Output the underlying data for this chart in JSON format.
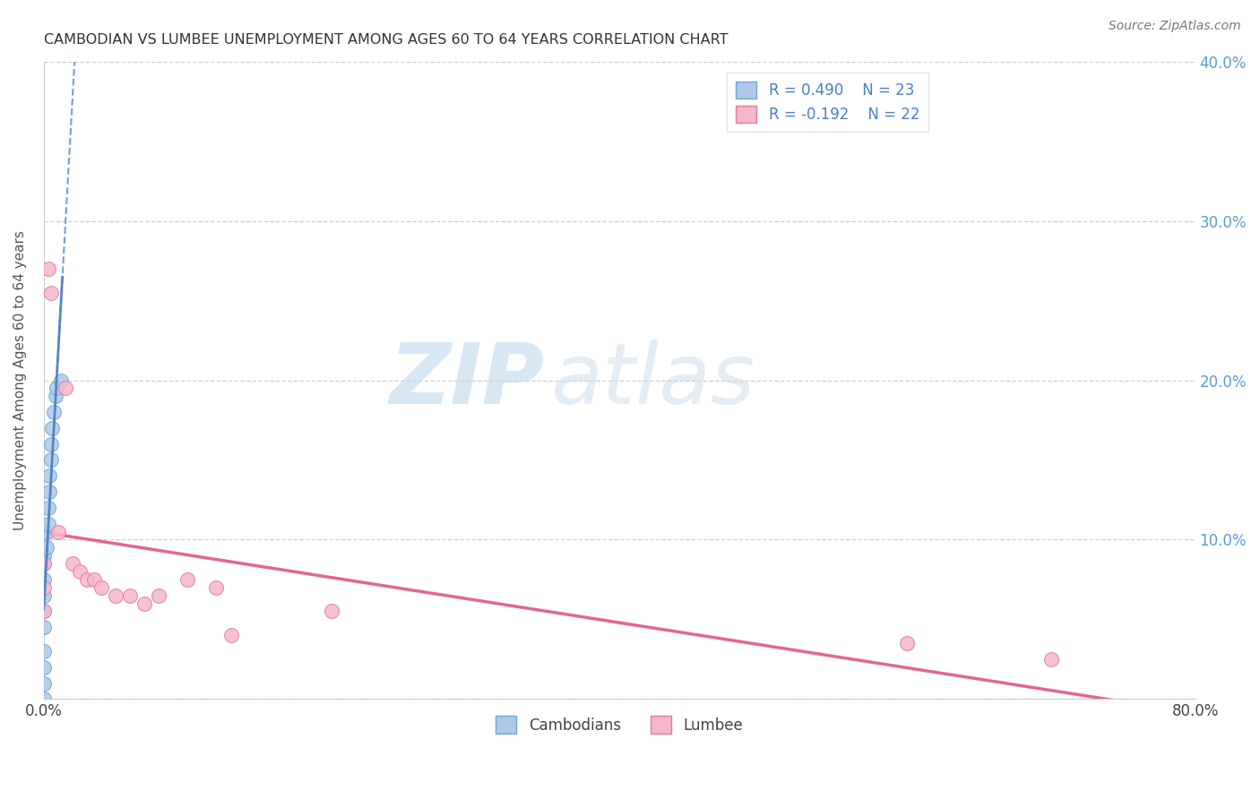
{
  "title": "CAMBODIAN VS LUMBEE UNEMPLOYMENT AMONG AGES 60 TO 64 YEARS CORRELATION CHART",
  "source": "Source: ZipAtlas.com",
  "ylabel": "Unemployment Among Ages 60 to 64 years",
  "xlim": [
    0,
    0.8
  ],
  "ylim": [
    0,
    0.4
  ],
  "cambodian_R": 0.49,
  "cambodian_N": 23,
  "lumbee_R": -0.192,
  "lumbee_N": 22,
  "cambodian_color": "#adc8e8",
  "lumbee_color": "#f4b8cb",
  "cambodian_edge_color": "#6aaad4",
  "lumbee_edge_color": "#e8799a",
  "cambodian_trend_color": "#4a7fc1",
  "lumbee_trend_color": "#e05878",
  "watermark_zip_color": "#c5ddf0",
  "watermark_atlas_color": "#c8d8e8",
  "background_color": "#ffffff",
  "grid_color": "#cccccc",
  "right_tick_color": "#5b9bd5",
  "cambodian_x": [
    0.0,
    0.0,
    0.0,
    0.0,
    0.0,
    0.0,
    0.0,
    0.0,
    0.0,
    0.0,
    0.002,
    0.002,
    0.003,
    0.003,
    0.004,
    0.004,
    0.005,
    0.005,
    0.006,
    0.007,
    0.008,
    0.009,
    0.012
  ],
  "cambodian_y": [
    0.0,
    0.01,
    0.02,
    0.03,
    0.045,
    0.055,
    0.065,
    0.075,
    0.085,
    0.09,
    0.095,
    0.105,
    0.11,
    0.12,
    0.13,
    0.14,
    0.15,
    0.16,
    0.17,
    0.18,
    0.19,
    0.195,
    0.2
  ],
  "lumbee_x": [
    0.0,
    0.0,
    0.0,
    0.003,
    0.005,
    0.01,
    0.015,
    0.02,
    0.025,
    0.03,
    0.035,
    0.04,
    0.05,
    0.06,
    0.07,
    0.08,
    0.1,
    0.12,
    0.13,
    0.2,
    0.6,
    0.7
  ],
  "lumbee_y": [
    0.055,
    0.07,
    0.085,
    0.27,
    0.255,
    0.105,
    0.195,
    0.085,
    0.08,
    0.075,
    0.075,
    0.07,
    0.065,
    0.065,
    0.06,
    0.065,
    0.075,
    0.07,
    0.04,
    0.055,
    0.035,
    0.025
  ]
}
